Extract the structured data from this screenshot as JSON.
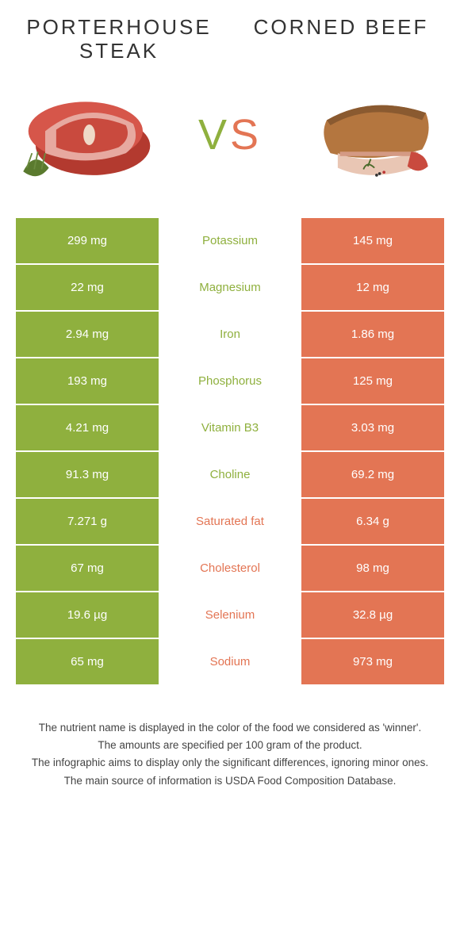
{
  "colors": {
    "left": "#8fb03e",
    "right": "#e37554",
    "bg": "#ffffff",
    "text": "#333333"
  },
  "header": {
    "left_title": "PORTERHOUSE STEAK",
    "right_title": "CORNED BEEF",
    "vs_v": "V",
    "vs_s": "S"
  },
  "rows": [
    {
      "left": "299 mg",
      "name": "Potassium",
      "right": "145 mg",
      "winner": "left"
    },
    {
      "left": "22 mg",
      "name": "Magnesium",
      "right": "12 mg",
      "winner": "left"
    },
    {
      "left": "2.94 mg",
      "name": "Iron",
      "right": "1.86 mg",
      "winner": "left"
    },
    {
      "left": "193 mg",
      "name": "Phosphorus",
      "right": "125 mg",
      "winner": "left"
    },
    {
      "left": "4.21 mg",
      "name": "Vitamin B3",
      "right": "3.03 mg",
      "winner": "left"
    },
    {
      "left": "91.3 mg",
      "name": "Choline",
      "right": "69.2 mg",
      "winner": "left"
    },
    {
      "left": "7.271 g",
      "name": "Saturated fat",
      "right": "6.34 g",
      "winner": "right"
    },
    {
      "left": "67 mg",
      "name": "Cholesterol",
      "right": "98 mg",
      "winner": "right"
    },
    {
      "left": "19.6 µg",
      "name": "Selenium",
      "right": "32.8 µg",
      "winner": "right"
    },
    {
      "left": "65 mg",
      "name": "Sodium",
      "right": "973 mg",
      "winner": "right"
    }
  ],
  "footer": {
    "l1": "The nutrient name is displayed in the color of the food we considered as 'winner'.",
    "l2": "The amounts are specified per 100 gram of the product.",
    "l3": "The infographic aims to display only the significant differences, ignoring minor ones.",
    "l4": "The main source of information is USDA Food Composition Database."
  }
}
